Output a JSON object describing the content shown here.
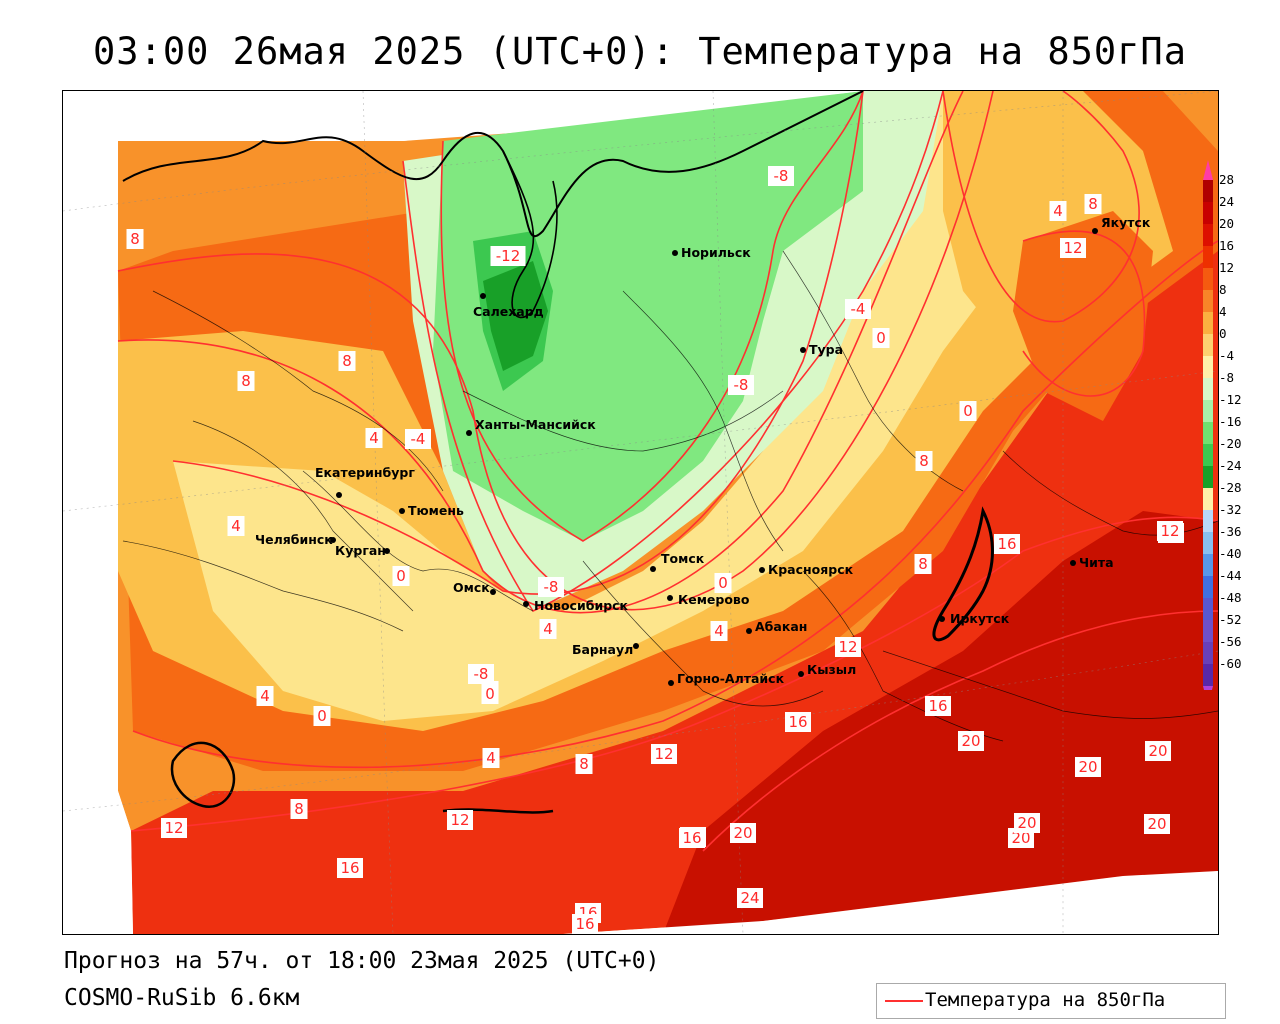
{
  "header": {
    "title": "03:00 26мая 2025 (UTC+0): Температура на 850гПа"
  },
  "footer": {
    "forecast": "Прогноз на 57ч. от 18:00 23мая 2025 (UTC+0)",
    "model": "COSMO-RuSib 6.6км"
  },
  "legend": {
    "label": "Температура на 850гПа",
    "line_color": "#ff3030"
  },
  "colorbar": {
    "ticks": [
      "28",
      "24",
      "20",
      "16",
      "12",
      "8",
      "4",
      "0",
      "-4",
      "-8",
      "-12",
      "-16",
      "-20",
      "-24",
      "-28",
      "-32",
      "-36",
      "-40",
      "-44",
      "-48",
      "-52",
      "-56",
      "-60"
    ],
    "colors": [
      "#b00000",
      "#c80000",
      "#dd1000",
      "#ee3000",
      "#f55a10",
      "#f88428",
      "#fbb040",
      "#fdd070",
      "#fff0a8",
      "#d8f8c8",
      "#a8f0a8",
      "#70e070",
      "#3cc850",
      "#18a028",
      "#fff0a8",
      "#b8d8f8",
      "#88c0f0",
      "#5898e8",
      "#4070e0",
      "#5858d0",
      "#7050c8",
      "#6840b8",
      "#5828a8"
    ],
    "top_cap_color": "#ff3ca8",
    "bottom_cap_color": "#b040d8"
  },
  "cities": [
    {
      "name": "Норильск"
    },
    {
      "name": "Салехард"
    },
    {
      "name": "Тура"
    },
    {
      "name": "Ханты-Мансийск"
    },
    {
      "name": "Якутск"
    },
    {
      "name": "Екатеринбург"
    },
    {
      "name": "Тюмень"
    },
    {
      "name": "Челябинск"
    },
    {
      "name": "Курган"
    },
    {
      "name": "Омск"
    },
    {
      "name": "Новосибирск"
    },
    {
      "name": "Томск"
    },
    {
      "name": "Красноярск"
    },
    {
      "name": "Кемерово"
    },
    {
      "name": "Барнаул"
    },
    {
      "name": "Абакан"
    },
    {
      "name": "Горно-Алтайск"
    },
    {
      "name": "Кызыл"
    },
    {
      "name": "Иркутск"
    },
    {
      "name": "Чита"
    }
  ],
  "contour_labels": [
    "8",
    "8",
    "8",
    "4",
    "4",
    "0",
    "0",
    "-4",
    "-12",
    "-8",
    "-4",
    "0",
    "-8",
    "-8",
    "4",
    "-8",
    "0",
    "4",
    "0",
    "4",
    "8",
    "8",
    "12",
    "12",
    "12",
    "16",
    "16",
    "8",
    "0",
    "4",
    "8",
    "12",
    "4",
    "0",
    "12",
    "8",
    "16",
    "16",
    "16",
    "20",
    "20",
    "20",
    "20",
    "20",
    "20",
    "12",
    "16",
    "20",
    "24",
    "16",
    "12",
    "16"
  ],
  "colors": {
    "map_warm_1": "#fde58c",
    "map_warm_2": "#fbc04a",
    "map_orange": "#f8922a",
    "map_deep_orange": "#f66a14",
    "map_red": "#ee3010",
    "map_dark_red": "#c81000",
    "map_cold_1": "#d8f8c8",
    "map_cold_2": "#80e880",
    "map_cold_3": "#3cc850",
    "map_cold_4": "#18a028"
  }
}
